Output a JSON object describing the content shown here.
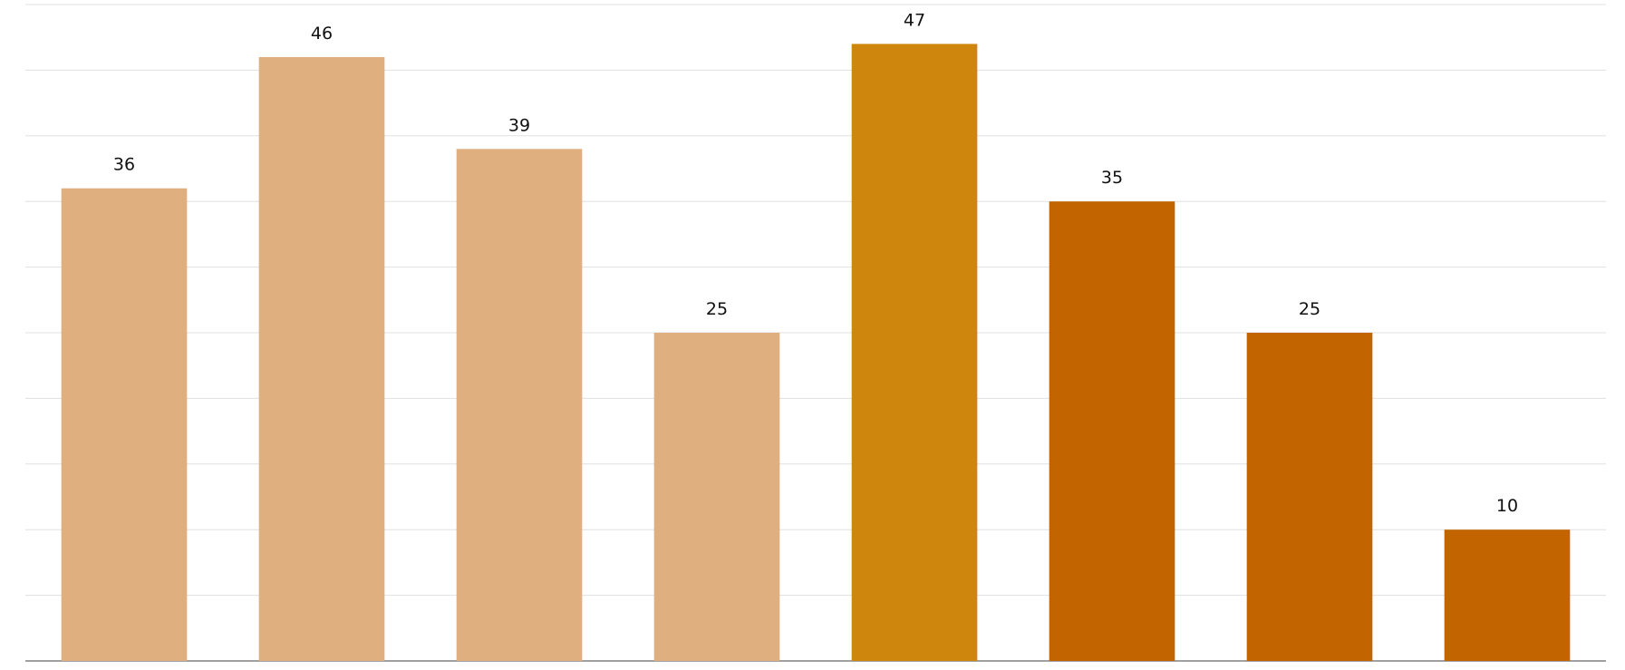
{
  "chart_data": {
    "type": "bar",
    "categories": [
      null,
      null,
      null,
      null,
      null,
      null,
      null,
      null
    ],
    "values": [
      36,
      46,
      39,
      25,
      47,
      35,
      25,
      10
    ],
    "colors": [
      "#e0af80",
      "#e0af80",
      "#e0af80",
      "#e0af80",
      "#cf860c",
      "#c26500",
      "#c26500",
      "#c26500"
    ],
    "ylim": [
      0,
      50
    ],
    "yticks": [
      0,
      5,
      10,
      15,
      20,
      25,
      30,
      35,
      40,
      45,
      50
    ],
    "grid": true
  }
}
